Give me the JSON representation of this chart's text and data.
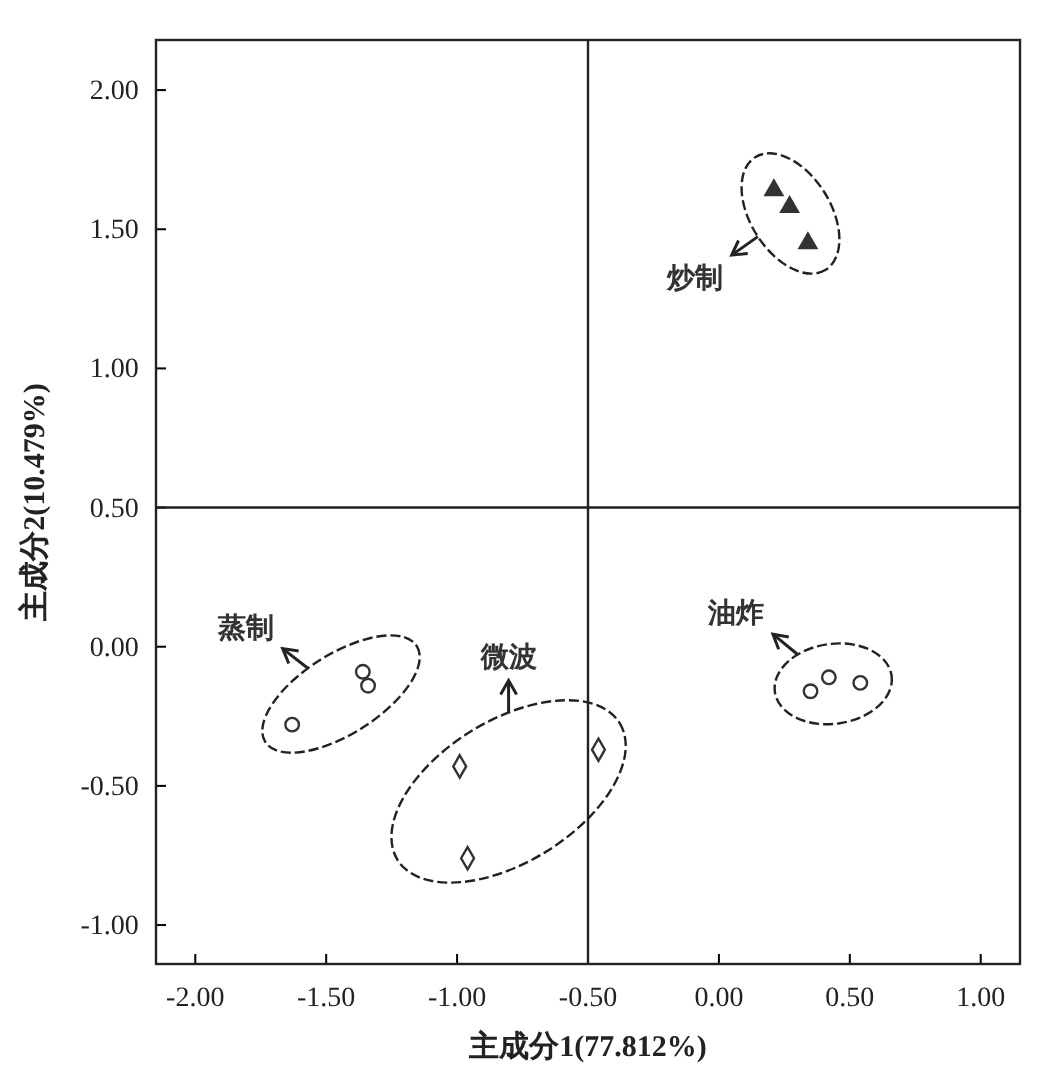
{
  "chart_data": {
    "type": "scatter",
    "xlabel": "主成分1(77.812%)",
    "ylabel": "主成分2(10.479%)",
    "xlim": [
      -2.15,
      1.15
    ],
    "ylim": [
      -1.14,
      2.18
    ],
    "xticks": [
      {
        "value": -2,
        "label": "-2.00"
      },
      {
        "value": -1.5,
        "label": "-1.50"
      },
      {
        "value": -1,
        "label": "-1.00"
      },
      {
        "value": -0.5,
        "label": "-0.50"
      },
      {
        "value": 0,
        "label": "0.00"
      },
      {
        "value": 0.5,
        "label": "0.50"
      },
      {
        "value": 1,
        "label": "1.00"
      }
    ],
    "yticks": [
      {
        "value": -1,
        "label": "-1.00"
      },
      {
        "value": -0.5,
        "label": "-0.50"
      },
      {
        "value": 0,
        "label": "0.00"
      },
      {
        "value": 0.5,
        "label": "0.50"
      },
      {
        "value": 1,
        "label": "1.00"
      },
      {
        "value": 1.5,
        "label": "1.50"
      },
      {
        "value": 2,
        "label": "2.00"
      }
    ],
    "ref_lines": [
      {
        "axis": "x",
        "value": -0.5,
        "color": "#222222"
      },
      {
        "axis": "y",
        "value": 0.5,
        "color": "#222222"
      }
    ],
    "grid": false,
    "legend": false,
    "series": [
      {
        "name": "炒制",
        "color": "#333333",
        "marker": "triangle",
        "x": [
          0.21,
          0.27,
          0.34
        ],
        "values": [
          1.64,
          1.58,
          1.45
        ]
      },
      {
        "name": "油炸",
        "color": "#333333",
        "marker": "circle",
        "x": [
          0.35,
          0.42,
          0.54
        ],
        "values": [
          -0.16,
          -0.11,
          -0.13
        ]
      },
      {
        "name": "蒸制",
        "color": "#333333",
        "marker": "circle",
        "x": [
          -1.63,
          -1.36,
          -1.34
        ],
        "values": [
          -0.28,
          -0.09,
          -0.14
        ]
      },
      {
        "name": "微波",
        "color": "#333333",
        "marker": "diamond",
        "x": [
          -0.99,
          -0.46,
          -0.96
        ],
        "values": [
          -0.43,
          -0.37,
          -0.76
        ]
      }
    ]
  }
}
